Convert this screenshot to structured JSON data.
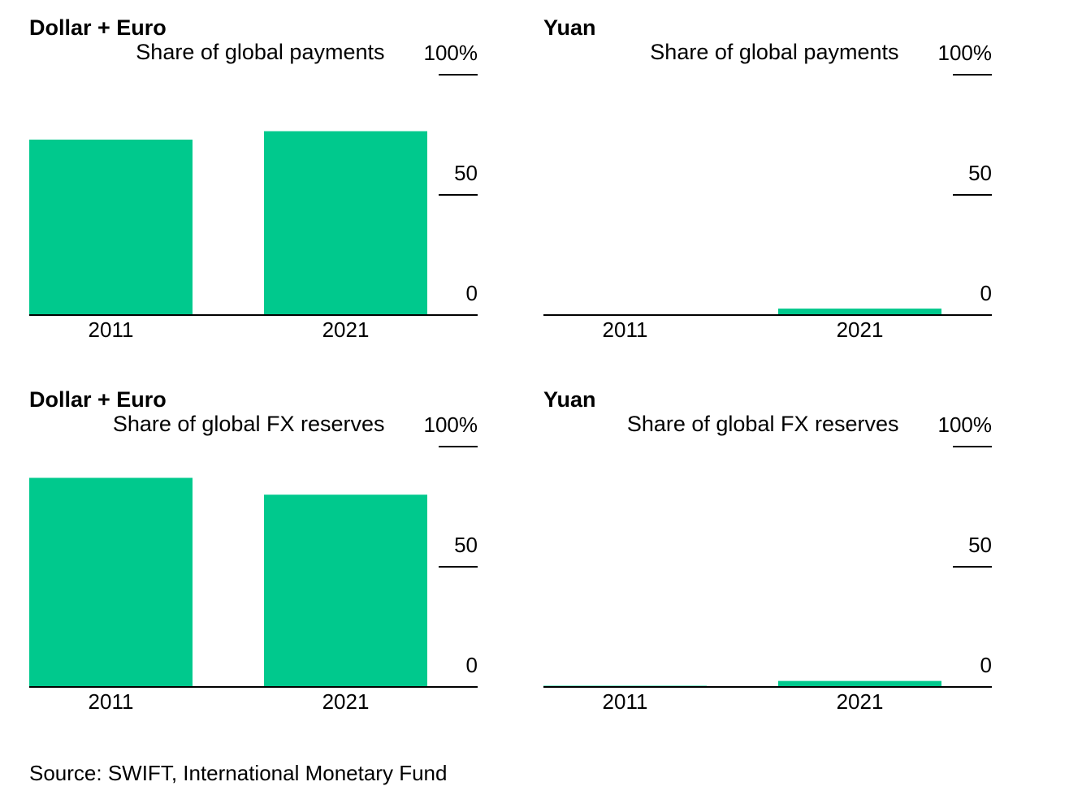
{
  "chart_data": [
    {
      "type": "bar",
      "title": "Dollar + Euro",
      "subtitle": "Share of global payments",
      "categories": [
        "2011",
        "2021"
      ],
      "values": [
        73,
        76.5
      ],
      "ylim": [
        0,
        100
      ],
      "yticks": [
        100,
        50,
        0
      ],
      "ytick_labels": [
        "100%",
        "50",
        "0"
      ],
      "color": "#00c98d"
    },
    {
      "type": "bar",
      "title": "Yuan",
      "subtitle": "Share of global payments",
      "categories": [
        "2011",
        "2021"
      ],
      "values": [
        0.3,
        2.7
      ],
      "ylim": [
        0,
        100
      ],
      "yticks": [
        100,
        50,
        0
      ],
      "ytick_labels": [
        "100%",
        "50",
        "0"
      ],
      "color": "#00c98d"
    },
    {
      "type": "bar",
      "title": "Dollar + Euro",
      "subtitle": "Share of global FX reserves",
      "categories": [
        "2011",
        "2021"
      ],
      "values": [
        87,
        80
      ],
      "ylim": [
        0,
        100
      ],
      "yticks": [
        100,
        50,
        0
      ],
      "ytick_labels": [
        "100%",
        "50",
        "0"
      ],
      "color": "#00c98d"
    },
    {
      "type": "bar",
      "title": "Yuan",
      "subtitle": "Share of global FX reserves",
      "categories": [
        "2011",
        "2021"
      ],
      "values": [
        0.5,
        2.5
      ],
      "ylim": [
        0,
        100
      ],
      "yticks": [
        100,
        50,
        0
      ],
      "ytick_labels": [
        "100%",
        "50",
        "0"
      ],
      "color": "#00c98d"
    }
  ],
  "source": "Source: SWIFT, International Monetary Fund"
}
